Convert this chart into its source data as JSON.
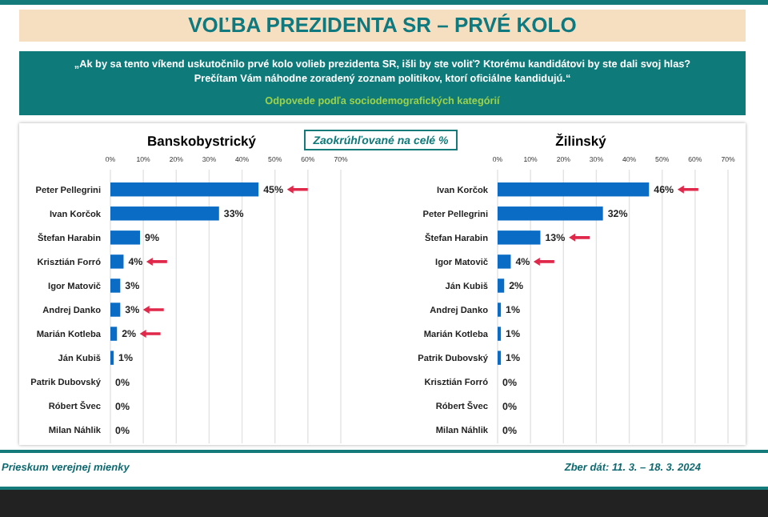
{
  "chart_data": [
    {
      "type": "other",
      "title": "VOĽBA PREZIDENTA SR – PRVÉ KOLO",
      "subtitle": "„Ak by sa tento víkend uskutočnilo prvé kolo volieb prezidenta SR, išli by ste voliť? Ktorému kandidátovi by ste dali svoj hlas? Prečítam Vám náhodne zoradený zoznam politikov, ktorí oficiálne kandidujú.“",
      "annotations": [
        "Odpovede podľa sociodemografických kategórií",
        "Zaokrúhľované na celé %",
        "Prieskum verejnej mienky",
        "Zber dát: 11. 3. – 18. 3. 2024"
      ]
    },
    {
      "type": "bar",
      "orientation": "horizontal",
      "title": "Banskobystrický",
      "categories": [
        "Peter Pellegrini",
        "Ivan Korčok",
        "Štefan Harabin",
        "Krisztián Forró",
        "Igor Matovič",
        "Andrej Danko",
        "Marián Kotleba",
        "Ján Kubiš",
        "Patrik Dubovský",
        "Róbert Švec",
        "Milan Náhlik"
      ],
      "values": [
        45,
        33,
        9,
        4,
        3,
        3,
        2,
        1,
        0,
        0,
        0
      ],
      "value_labels": [
        "45%",
        "33%",
        "9%",
        "4%",
        "3%",
        "3%",
        "2%",
        "1%",
        "0%",
        "0%",
        "0%"
      ],
      "color": "#0a6cc4",
      "xlim": [
        0,
        70
      ],
      "xticks": [
        {
          "value": 0,
          "label": "0%"
        },
        {
          "value": 10,
          "label": "10%"
        },
        {
          "value": 20,
          "label": "20%"
        },
        {
          "value": 30,
          "label": "30%"
        },
        {
          "value": 40,
          "label": "40%"
        },
        {
          "value": 50,
          "label": "50%"
        },
        {
          "value": 60,
          "label": "60%"
        },
        {
          "value": 70,
          "label": "70%"
        }
      ],
      "grid": "x"
    },
    {
      "type": "bar",
      "orientation": "horizontal",
      "title": "Žilinský",
      "categories": [
        "Ivan Korčok",
        "Peter Pellegrini",
        "Štefan Harabin",
        "Igor Matovič",
        "Ján Kubiš",
        "Andrej Danko",
        "Marián Kotleba",
        "Patrik Dubovský",
        "Krisztián Forró",
        "Róbert Švec",
        "Milan Náhlik"
      ],
      "values": [
        46,
        32,
        13,
        4,
        2,
        1,
        1,
        1,
        0,
        0,
        0
      ],
      "value_labels": [
        "46%",
        "32%",
        "13%",
        "4%",
        "2%",
        "1%",
        "1%",
        "1%",
        "0%",
        "0%",
        "0%"
      ],
      "color": "#0a6cc4",
      "xlim": [
        0,
        70
      ],
      "xticks": [
        {
          "value": 0,
          "label": "0%"
        },
        {
          "value": 10,
          "label": "10%"
        },
        {
          "value": 20,
          "label": "20%"
        },
        {
          "value": 30,
          "label": "30%"
        },
        {
          "value": 40,
          "label": "40%"
        },
        {
          "value": 50,
          "label": "50%"
        },
        {
          "value": 60,
          "label": "60%"
        },
        {
          "value": 70,
          "label": "70%"
        }
      ],
      "grid": "x"
    }
  ]
}
